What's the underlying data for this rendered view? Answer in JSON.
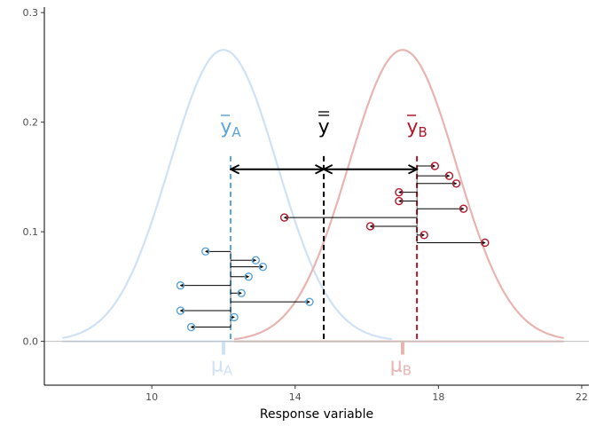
{
  "chart_data": {
    "type": "scatter",
    "title": "",
    "xlabel": "Response variable",
    "ylabel": "",
    "xlim": [
      7.0,
      22.2
    ],
    "ylim": [
      -0.04,
      0.305
    ],
    "x_ticks": [
      "10",
      "14",
      "18",
      "22"
    ],
    "y_ticks": [
      "0.0",
      "0.1",
      "0.2",
      "0.3"
    ],
    "grid": false,
    "colors": {
      "group_a": "#5ba3d9",
      "group_a_light": "#cfe2f5",
      "group_b": "#b2182b",
      "group_b_light": "#e8b4b1",
      "axis": "#000000",
      "zero_line": "#bdbdbd"
    },
    "distributions": [
      {
        "group": "A",
        "mean": 12.0,
        "sd": 1.5,
        "x_range": [
          7.5,
          16.7
        ]
      },
      {
        "group": "B",
        "mean": 17.0,
        "sd": 1.5,
        "x_range": [
          12.3,
          21.5
        ]
      }
    ],
    "means": {
      "group_a": {
        "label": "y",
        "subscript": "A",
        "value": 12.2
      },
      "group_b": {
        "label": "y",
        "subscript": "B",
        "value": 17.4
      },
      "grand": {
        "label": "y",
        "value": 14.8
      }
    },
    "true_means": [
      {
        "label": "μ",
        "subscript": "A",
        "value": 12.0
      },
      {
        "label": "μ",
        "subscript": "B",
        "value": 17.0
      }
    ],
    "mean_arrow_y": 0.157,
    "points_a": [
      {
        "x": 11.5,
        "y": 0.082
      },
      {
        "x": 12.9,
        "y": 0.074
      },
      {
        "x": 13.1,
        "y": 0.068
      },
      {
        "x": 12.7,
        "y": 0.059
      },
      {
        "x": 10.8,
        "y": 0.051
      },
      {
        "x": 12.5,
        "y": 0.044
      },
      {
        "x": 14.4,
        "y": 0.036
      },
      {
        "x": 10.8,
        "y": 0.028
      },
      {
        "x": 12.3,
        "y": 0.022
      },
      {
        "x": 11.1,
        "y": 0.013
      }
    ],
    "points_b": [
      {
        "x": 17.9,
        "y": 0.16
      },
      {
        "x": 18.3,
        "y": 0.151
      },
      {
        "x": 18.5,
        "y": 0.144
      },
      {
        "x": 16.9,
        "y": 0.136
      },
      {
        "x": 16.9,
        "y": 0.128
      },
      {
        "x": 18.7,
        "y": 0.121
      },
      {
        "x": 13.7,
        "y": 0.113
      },
      {
        "x": 16.1,
        "y": 0.105
      },
      {
        "x": 17.6,
        "y": 0.097
      },
      {
        "x": 19.3,
        "y": 0.09
      }
    ]
  }
}
